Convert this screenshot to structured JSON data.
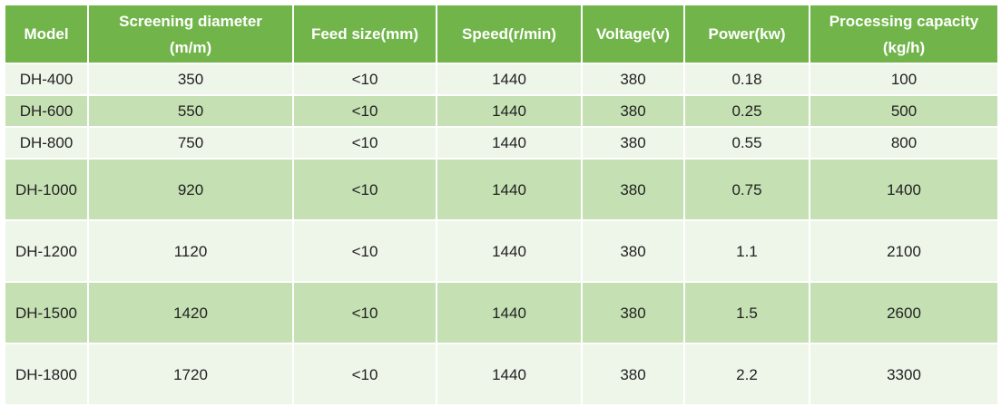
{
  "table": {
    "headers": [
      {
        "line1": "Model",
        "line2": ""
      },
      {
        "line1": "Screening diameter",
        "line2": "(m/m)"
      },
      {
        "line1": "Feed size(mm)",
        "line2": ""
      },
      {
        "line1": "Speed(r/min)",
        "line2": ""
      },
      {
        "line1": "Voltage(v)",
        "line2": ""
      },
      {
        "line1": "Power(kw)",
        "line2": ""
      },
      {
        "line1": "Processing capacity",
        "line2": "(kg/h)"
      }
    ],
    "rows": [
      [
        "DH-400",
        "350",
        "<10",
        "1440",
        "380",
        "0.18",
        "100"
      ],
      [
        "DH-600",
        "550",
        "<10",
        "1440",
        "380",
        "0.25",
        "500"
      ],
      [
        "DH-800",
        "750",
        "<10",
        "1440",
        "380",
        "0.55",
        "800"
      ],
      [
        "DH-1000",
        "920",
        "<10",
        "1440",
        "380",
        "0.75",
        "1400"
      ],
      [
        "DH-1200",
        "1120",
        "<10",
        "1440",
        "380",
        "1.1",
        "2100"
      ],
      [
        "DH-1500",
        "1420",
        "<10",
        "1440",
        "380",
        "1.5",
        "2600"
      ],
      [
        "DH-1800",
        "1720",
        "<10",
        "1440",
        "380",
        "2.2",
        "3300"
      ]
    ]
  }
}
